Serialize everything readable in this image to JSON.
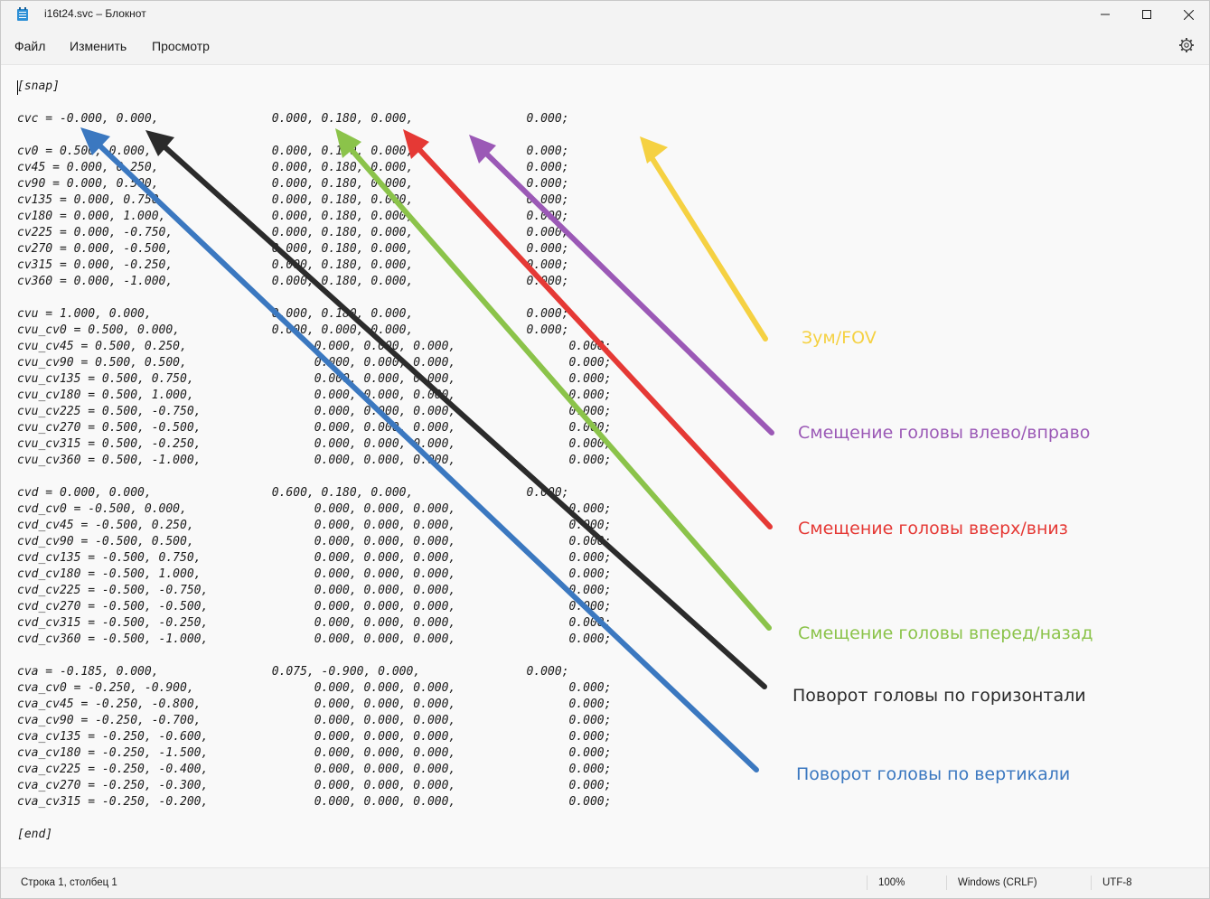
{
  "window": {
    "title": "i16t24.svc – Блокнот"
  },
  "menu": {
    "file": "Файл",
    "edit": "Изменить",
    "view": "Просмотр"
  },
  "editor": {
    "content": "[snap]\n\ncvc = -0.000, 0.000,                0.000, 0.180, 0.000,                0.000;\n\ncv0 = 0.500, 0.000,                 0.000, 0.180, 0.000,                0.000;\ncv45 = 0.000, 0.250,                0.000, 0.180, 0.000,                0.000;\ncv90 = 0.000, 0.500,                0.000, 0.180, 0.000,                0.000;\ncv135 = 0.000, 0.750,               0.000, 0.180, 0.000,                0.000;\ncv180 = 0.000, 1.000,               0.000, 0.180, 0.000,                0.000;\ncv225 = 0.000, -0.750,              0.000, 0.180, 0.000,                0.000;\ncv270 = 0.000, -0.500,              0.000, 0.180, 0.000,                0.000;\ncv315 = 0.000, -0.250,              0.000, 0.180, 0.000,                0.000;\ncv360 = 0.000, -1.000,              0.000, 0.180, 0.000,                0.000;\n\ncvu = 1.000, 0.000,                 0.000, 0.180, 0.000,                0.000;\ncvu_cv0 = 0.500, 0.000,             0.000, 0.000, 0.000,                0.000;\ncvu_cv45 = 0.500, 0.250,                  0.000, 0.000, 0.000,                0.000;\ncvu_cv90 = 0.500, 0.500,                  0.000, 0.000, 0.000,                0.000;\ncvu_cv135 = 0.500, 0.750,                 0.000, 0.000, 0.000,                0.000;\ncvu_cv180 = 0.500, 1.000,                 0.000, 0.000, 0.000,                0.000;\ncvu_cv225 = 0.500, -0.750,                0.000, 0.000, 0.000,                0.000;\ncvu_cv270 = 0.500, -0.500,                0.000, 0.000, 0.000,                0.000;\ncvu_cv315 = 0.500, -0.250,                0.000, 0.000, 0.000,                0.000;\ncvu_cv360 = 0.500, -1.000,                0.000, 0.000, 0.000,                0.000;\n\ncvd = 0.000, 0.000,                 0.600, 0.180, 0.000,                0.000;\ncvd_cv0 = -0.500, 0.000,                  0.000, 0.000, 0.000,                0.000;\ncvd_cv45 = -0.500, 0.250,                 0.000, 0.000, 0.000,                0.000;\ncvd_cv90 = -0.500, 0.500,                 0.000, 0.000, 0.000,                0.000;\ncvd_cv135 = -0.500, 0.750,                0.000, 0.000, 0.000,                0.000;\ncvd_cv180 = -0.500, 1.000,                0.000, 0.000, 0.000,                0.000;\ncvd_cv225 = -0.500, -0.750,               0.000, 0.000, 0.000,                0.000;\ncvd_cv270 = -0.500, -0.500,               0.000, 0.000, 0.000,                0.000;\ncvd_cv315 = -0.500, -0.250,               0.000, 0.000, 0.000,                0.000;\ncvd_cv360 = -0.500, -1.000,               0.000, 0.000, 0.000,                0.000;\n\ncva = -0.185, 0.000,                0.075, -0.900, 0.000,               0.000;\ncva_cv0 = -0.250, -0.900,                 0.000, 0.000, 0.000,                0.000;\ncva_cv45 = -0.250, -0.800,                0.000, 0.000, 0.000,                0.000;\ncva_cv90 = -0.250, -0.700,                0.000, 0.000, 0.000,                0.000;\ncva_cv135 = -0.250, -0.600,               0.000, 0.000, 0.000,                0.000;\ncva_cv180 = -0.250, -1.500,               0.000, 0.000, 0.000,                0.000;\ncva_cv225 = -0.250, -0.400,               0.000, 0.000, 0.000,                0.000;\ncva_cv270 = -0.250, -0.300,               0.000, 0.000, 0.000,                0.000;\ncva_cv315 = -0.250, -0.200,               0.000, 0.000, 0.000,                0.000;\n\n[end]"
  },
  "annotations": {
    "zoom": {
      "text": "Зум/FOV",
      "color": "#f5d142"
    },
    "left_right": {
      "text": "Смещение головы влево/вправо",
      "color": "#9b59b6"
    },
    "up_down": {
      "text": "Смещение головы вверх/вниз",
      "color": "#e53935"
    },
    "fwd_back": {
      "text": "Смещение головы вперед/назад",
      "color": "#8bc34a"
    },
    "yaw": {
      "text": "Поворот головы по горизонтали",
      "color": "#2b2b2b"
    },
    "pitch": {
      "text": "Поворот головы по вертикали",
      "color": "#3b78c0"
    }
  },
  "status": {
    "position": "Строка 1, столбец 1",
    "zoom": "100%",
    "line_endings": "Windows (CRLF)",
    "encoding": "UTF-8"
  }
}
